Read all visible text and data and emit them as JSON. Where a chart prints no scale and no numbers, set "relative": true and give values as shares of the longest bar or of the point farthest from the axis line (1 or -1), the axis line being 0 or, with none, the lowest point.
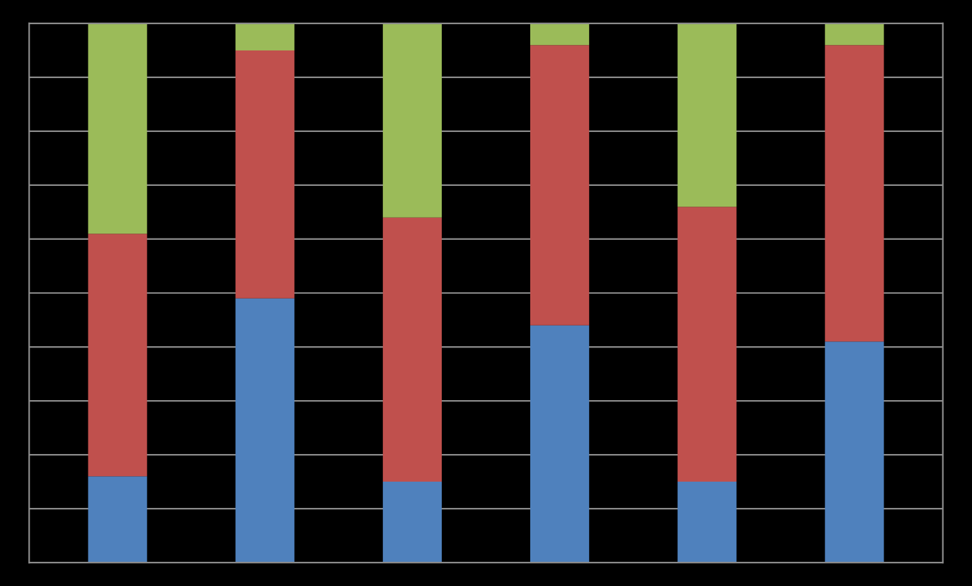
{
  "chart_data": {
    "type": "bar",
    "stacked": true,
    "relative": true,
    "grid": "y",
    "categories": [
      null,
      null,
      null,
      null,
      null,
      null
    ],
    "series": [
      {
        "color": "#4f81bd",
        "values": [
          0.16,
          0.49,
          0.15,
          0.44,
          0.15,
          0.41
        ]
      },
      {
        "color": "#c0504d",
        "values": [
          0.45,
          0.46,
          0.49,
          0.52,
          0.51,
          0.55
        ]
      },
      {
        "color": "#9bbb59",
        "values": [
          0.39,
          0.05,
          0.36,
          0.04,
          0.34,
          0.04
        ]
      }
    ]
  }
}
